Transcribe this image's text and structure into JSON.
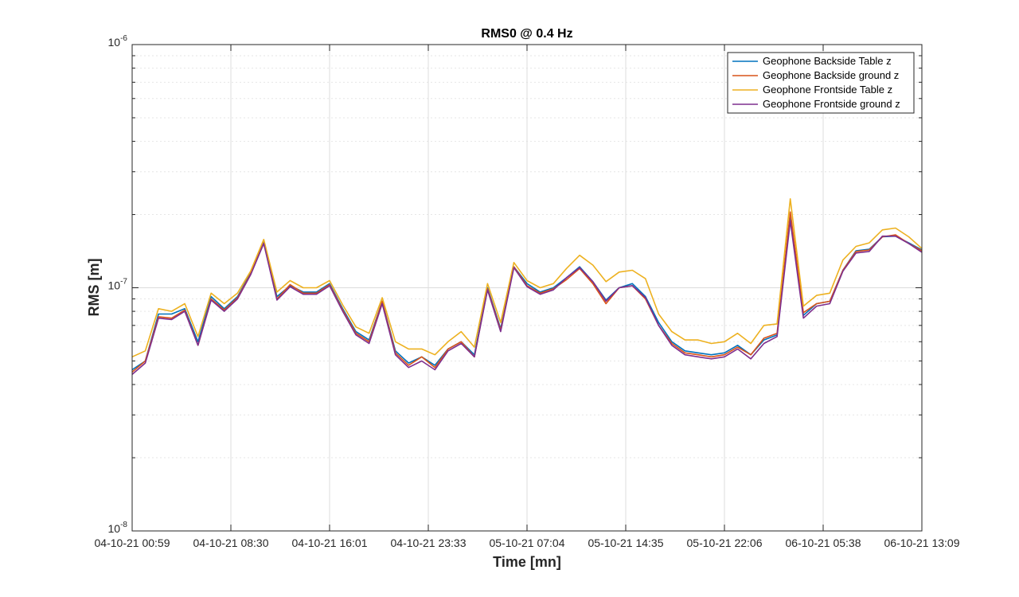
{
  "chart_data": {
    "type": "line",
    "title": "RMS0 @ 0.4 Hz",
    "xlabel": "Time [mn]",
    "ylabel": "RMS [m]",
    "yscale": "log",
    "ylim": [
      1e-08,
      1e-06
    ],
    "y_ticks": [
      {
        "base": "10",
        "exp": "-8",
        "value": 1e-08
      },
      {
        "base": "10",
        "exp": "-7",
        "value": 1e-07
      },
      {
        "base": "10",
        "exp": "-6",
        "value": 1e-06
      }
    ],
    "x_ticks": [
      "04-10-21 00:59",
      "04-10-21 08:30",
      "04-10-21 16:01",
      "04-10-21 23:33",
      "05-10-21 07:04",
      "05-10-21 14:35",
      "05-10-21 22:06",
      "06-10-21 05:38",
      "06-10-21 13:09"
    ],
    "grid": true,
    "legend_position": "top-right",
    "series": [
      {
        "name": "Geophone Backside Table z",
        "color": "#0072BD",
        "values": [
          4.6e-08,
          5e-08,
          7.8e-08,
          7.8e-08,
          8.2e-08,
          6e-08,
          9.2e-08,
          8.2e-08,
          9.2e-08,
          1.15e-07,
          1.55e-07,
          9.2e-08,
          1.02e-07,
          9.6e-08,
          9.6e-08,
          1.04e-07,
          8.2e-08,
          6.6e-08,
          6.1e-08,
          8.8e-08,
          5.5e-08,
          4.9e-08,
          5.2e-08,
          4.8e-08,
          5.6e-08,
          6e-08,
          5.3e-08,
          1e-07,
          6.8e-08,
          1.22e-07,
          1.04e-07,
          9.6e-08,
          1e-07,
          1.1e-07,
          1.22e-07,
          1.06e-07,
          8.9e-08,
          1e-07,
          1.04e-07,
          9.2e-08,
          7.2e-08,
          6e-08,
          5.5e-08,
          5.4e-08,
          5.3e-08,
          5.4e-08,
          5.8e-08,
          5.3e-08,
          6.1e-08,
          6.4e-08,
          1.95e-07,
          7.7e-08,
          8.6e-08,
          8.8e-08,
          1.18e-07,
          1.42e-07,
          1.44e-07,
          1.62e-07,
          1.63e-07,
          1.53e-07,
          1.43e-07
        ]
      },
      {
        "name": "Geophone Backside ground z",
        "color": "#D95319",
        "values": [
          4.5e-08,
          5e-08,
          7.6e-08,
          7.5e-08,
          8.1e-08,
          5.8e-08,
          9e-08,
          8.1e-08,
          9.1e-08,
          1.14e-07,
          1.53e-07,
          9e-08,
          1.03e-07,
          9.5e-08,
          9.5e-08,
          1.03e-07,
          8.1e-08,
          6.5e-08,
          6e-08,
          8.8e-08,
          5.4e-08,
          4.8e-08,
          5.2e-08,
          4.7e-08,
          5.6e-08,
          6e-08,
          5.2e-08,
          9.9e-08,
          6.7e-08,
          1.22e-07,
          1.02e-07,
          9.5e-08,
          9.9e-08,
          1.08e-07,
          1.2e-07,
          1.04e-07,
          8.6e-08,
          1e-07,
          1.02e-07,
          9e-08,
          7e-08,
          5.9e-08,
          5.4e-08,
          5.3e-08,
          5.2e-08,
          5.3e-08,
          5.7e-08,
          5.3e-08,
          6.2e-08,
          6.5e-08,
          2.05e-07,
          7.9e-08,
          8.6e-08,
          8.8e-08,
          1.18e-07,
          1.41e-07,
          1.43e-07,
          1.62e-07,
          1.65e-07,
          1.52e-07,
          1.42e-07
        ]
      },
      {
        "name": "Geophone Frontside Table z",
        "color": "#EDB120",
        "values": [
          5.2e-08,
          5.5e-08,
          8.2e-08,
          8e-08,
          8.6e-08,
          6.3e-08,
          9.5e-08,
          8.6e-08,
          9.5e-08,
          1.17e-07,
          1.58e-07,
          9.6e-08,
          1.07e-07,
          1e-07,
          1e-07,
          1.07e-07,
          8.5e-08,
          6.9e-08,
          6.5e-08,
          9.1e-08,
          6e-08,
          5.6e-08,
          5.6e-08,
          5.3e-08,
          6e-08,
          6.6e-08,
          5.7e-08,
          1.04e-07,
          7.2e-08,
          1.27e-07,
          1.07e-07,
          1e-07,
          1.04e-07,
          1.2e-07,
          1.36e-07,
          1.24e-07,
          1.06e-07,
          1.16e-07,
          1.18e-07,
          1.09e-07,
          7.8e-08,
          6.6e-08,
          6.1e-08,
          6.1e-08,
          5.9e-08,
          6e-08,
          6.5e-08,
          5.9e-08,
          7e-08,
          7.1e-08,
          2.32e-07,
          8.4e-08,
          9.3e-08,
          9.5e-08,
          1.3e-07,
          1.48e-07,
          1.53e-07,
          1.73e-07,
          1.76e-07,
          1.62e-07,
          1.45e-07
        ]
      },
      {
        "name": "Geophone Frontside ground z",
        "color": "#7E2F8E",
        "values": [
          4.4e-08,
          4.9e-08,
          7.5e-08,
          7.4e-08,
          8e-08,
          5.8e-08,
          8.9e-08,
          8e-08,
          9e-08,
          1.13e-07,
          1.52e-07,
          8.9e-08,
          1.01e-07,
          9.4e-08,
          9.4e-08,
          1.02e-07,
          8e-08,
          6.4e-08,
          5.9e-08,
          8.6e-08,
          5.3e-08,
          4.7e-08,
          5e-08,
          4.6e-08,
          5.5e-08,
          5.9e-08,
          5.2e-08,
          9.8e-08,
          6.6e-08,
          1.21e-07,
          1.01e-07,
          9.4e-08,
          9.8e-08,
          1.1e-07,
          1.21e-07,
          1.06e-07,
          8.8e-08,
          1e-07,
          1.02e-07,
          9.1e-08,
          7e-08,
          5.8e-08,
          5.3e-08,
          5.2e-08,
          5.1e-08,
          5.2e-08,
          5.6e-08,
          5.1e-08,
          5.9e-08,
          6.3e-08,
          1.88e-07,
          7.5e-08,
          8.4e-08,
          8.6e-08,
          1.17e-07,
          1.39e-07,
          1.41e-07,
          1.63e-07,
          1.63e-07,
          1.52e-07,
          1.4e-07
        ]
      }
    ]
  }
}
